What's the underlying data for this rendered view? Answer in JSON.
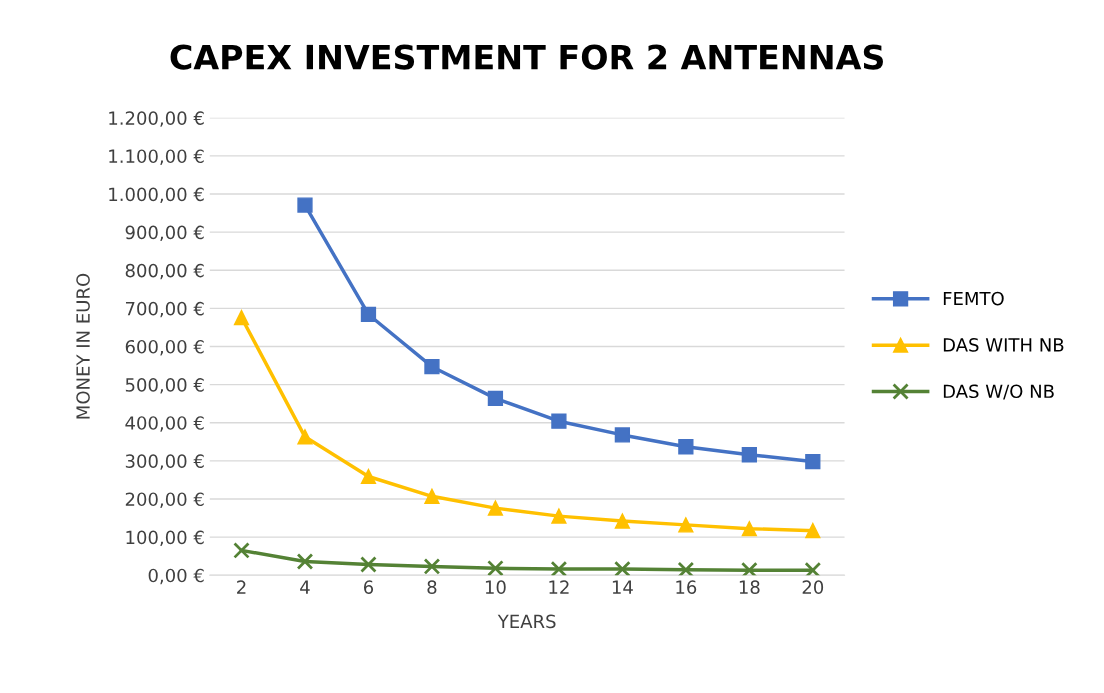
{
  "chart_data": {
    "type": "line",
    "title": "CAPEX INVESTMENT FOR 2 ANTENNAS",
    "xlabel": "YEARS",
    "ylabel": "MONEY IN EURO",
    "categories": [
      "2",
      "4",
      "6",
      "8",
      "10",
      "12",
      "14",
      "16",
      "18",
      "20"
    ],
    "series": [
      {
        "name": "FEMTO",
        "color": "#4472c4",
        "marker": "square",
        "values": [
          null,
          971,
          684,
          547,
          464,
          404,
          368,
          337,
          316,
          298
        ]
      },
      {
        "name": "DAS WITH NB",
        "color": "#ffc000",
        "marker": "triangle",
        "values": [
          676,
          363,
          259,
          207,
          176,
          155,
          142,
          132,
          122,
          117
        ]
      },
      {
        "name": "DAS W/O NB",
        "color": "#548235",
        "marker": "cross",
        "values": [
          65,
          36,
          28,
          23,
          18,
          16,
          16,
          14,
          13,
          13
        ]
      }
    ],
    "ylim": [
      0,
      1200
    ],
    "yticks": [
      {
        "value": 0,
        "label": "0,00 €"
      },
      {
        "value": 100,
        "label": "100,00 €"
      },
      {
        "value": 200,
        "label": "200,00 €"
      },
      {
        "value": 300,
        "label": "300,00 €"
      },
      {
        "value": 400,
        "label": "400,00 €"
      },
      {
        "value": 500,
        "label": "500,00 €"
      },
      {
        "value": 600,
        "label": "600,00 €"
      },
      {
        "value": 700,
        "label": "700,00 €"
      },
      {
        "value": 800,
        "label": "800,00 €"
      },
      {
        "value": 900,
        "label": "900,00 €"
      },
      {
        "value": 1000,
        "label": "1.000,00 €"
      },
      {
        "value": 1100,
        "label": "1.100,00 €"
      },
      {
        "value": 1200,
        "label": "1.200,00 €"
      }
    ],
    "grid": "y",
    "legend": "right"
  }
}
